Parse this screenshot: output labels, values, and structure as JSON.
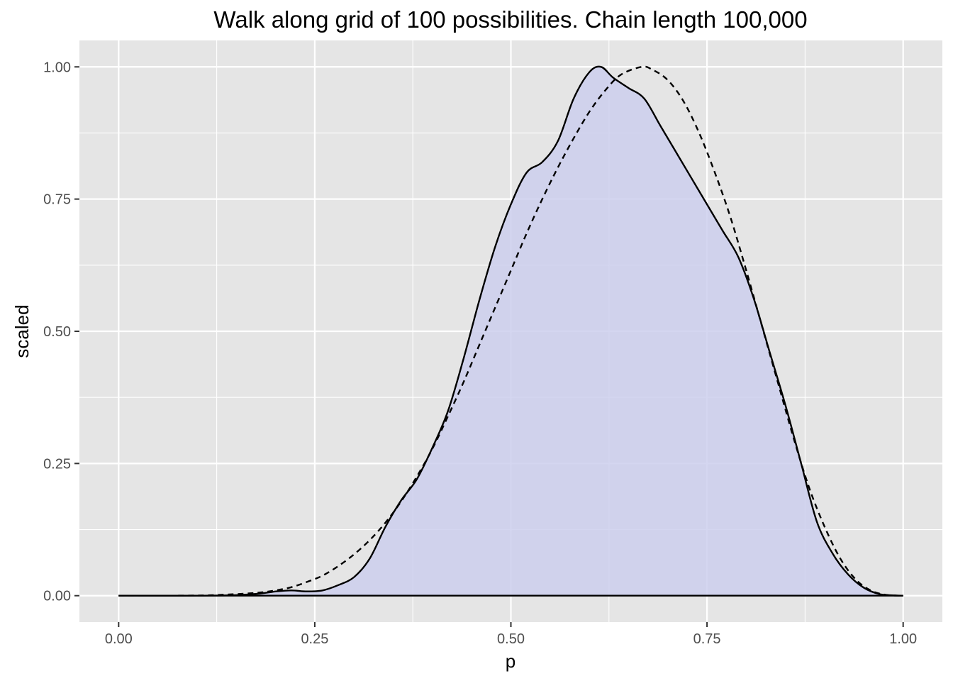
{
  "chart_data": {
    "type": "area",
    "title": "Walk along grid of 100 possibilities.  Chain length 100,000",
    "xlabel": "p",
    "ylabel": "scaled",
    "xlim": [
      -0.05,
      1.05
    ],
    "ylim": [
      -0.05,
      1.05
    ],
    "x_ticks": [
      0.0,
      0.25,
      0.5,
      0.75,
      1.0
    ],
    "x_tick_labels": [
      "0.00",
      "0.25",
      "0.50",
      "0.75",
      "1.00"
    ],
    "y_ticks": [
      0.0,
      0.25,
      0.5,
      0.75,
      1.0
    ],
    "y_tick_labels": [
      "0.00",
      "0.25",
      "0.50",
      "0.75",
      "1.00"
    ],
    "grid": true,
    "colors": {
      "panel_background": "#e5e5e5",
      "grid_line": "#ffffff",
      "fill": "#cccfed",
      "line": "#000000"
    },
    "series": [
      {
        "style": "solid-filled",
        "x": [
          0.0,
          0.1,
          0.15,
          0.18,
          0.2,
          0.22,
          0.24,
          0.26,
          0.28,
          0.3,
          0.32,
          0.34,
          0.36,
          0.38,
          0.4,
          0.42,
          0.44,
          0.46,
          0.48,
          0.5,
          0.52,
          0.54,
          0.56,
          0.58,
          0.6,
          0.615,
          0.63,
          0.65,
          0.67,
          0.69,
          0.71,
          0.73,
          0.75,
          0.77,
          0.79,
          0.81,
          0.83,
          0.85,
          0.87,
          0.89,
          0.91,
          0.93,
          0.95,
          0.97,
          0.99,
          1.0
        ],
        "y": [
          0.0,
          0.0,
          0.001,
          0.004,
          0.008,
          0.01,
          0.008,
          0.01,
          0.02,
          0.035,
          0.07,
          0.13,
          0.18,
          0.22,
          0.28,
          0.35,
          0.45,
          0.56,
          0.66,
          0.74,
          0.8,
          0.82,
          0.86,
          0.94,
          0.99,
          1.0,
          0.98,
          0.96,
          0.94,
          0.89,
          0.84,
          0.79,
          0.74,
          0.69,
          0.64,
          0.56,
          0.46,
          0.36,
          0.25,
          0.14,
          0.08,
          0.04,
          0.015,
          0.003,
          0.0005,
          0.0
        ]
      },
      {
        "style": "dashed",
        "x": [
          0.0,
          0.1,
          0.15,
          0.18,
          0.2,
          0.22,
          0.24,
          0.26,
          0.28,
          0.3,
          0.32,
          0.34,
          0.36,
          0.38,
          0.4,
          0.42,
          0.44,
          0.46,
          0.48,
          0.5,
          0.52,
          0.54,
          0.56,
          0.58,
          0.6,
          0.62,
          0.64,
          0.6667,
          0.68,
          0.7,
          0.72,
          0.74,
          0.76,
          0.78,
          0.8,
          0.82,
          0.84,
          0.86,
          0.88,
          0.9,
          0.92,
          0.94,
          0.96,
          0.98,
          1.0
        ],
        "y": [
          0.0,
          0.0004,
          0.003,
          0.006,
          0.01,
          0.016,
          0.026,
          0.038,
          0.056,
          0.078,
          0.105,
          0.138,
          0.178,
          0.225,
          0.278,
          0.34,
          0.405,
          0.475,
          0.545,
          0.615,
          0.685,
          0.75,
          0.81,
          0.865,
          0.915,
          0.955,
          0.985,
          1.0,
          0.995,
          0.975,
          0.935,
          0.875,
          0.8,
          0.715,
          0.615,
          0.51,
          0.405,
          0.3,
          0.205,
          0.13,
          0.07,
          0.03,
          0.009,
          0.0012,
          0.0
        ]
      }
    ]
  }
}
